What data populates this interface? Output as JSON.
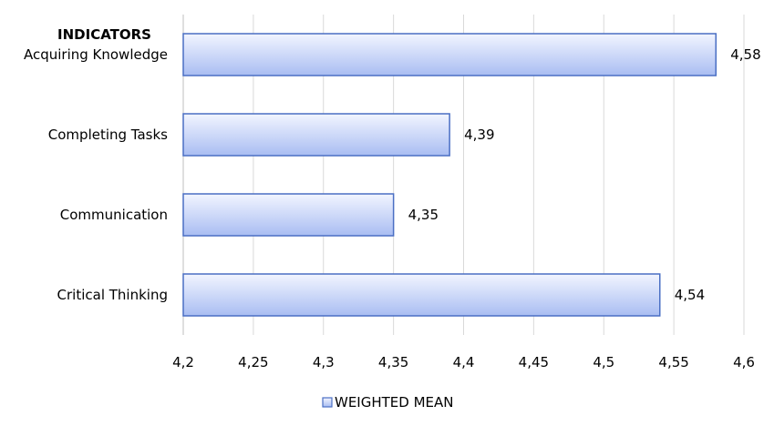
{
  "chart_data": {
    "type": "bar",
    "orientation": "horizontal",
    "category_header": "INDICATORS",
    "categories": [
      "Acquiring Knowledge",
      "Completing Tasks",
      "Communication",
      "Critical Thinking"
    ],
    "series": [
      {
        "name": "WEIGHTED MEAN",
        "values": [
          4.58,
          4.39,
          4.35,
          4.54
        ],
        "labels": [
          "4,58",
          "4,39",
          "4,35",
          "4,54"
        ]
      }
    ],
    "xlim": [
      4.2,
      4.6
    ],
    "xticks": [
      4.2,
      4.25,
      4.3,
      4.35,
      4.4,
      4.45,
      4.5,
      4.55,
      4.6
    ],
    "xtick_labels": [
      "4,2",
      "4,25",
      "4,3",
      "4,35",
      "4,4",
      "4,45",
      "4,5",
      "4,55",
      "4,6"
    ],
    "grid": "vertical",
    "legend": "bottom-center",
    "colors": {
      "bar_fill_light": "#f2f5ff",
      "bar_fill_dark": "#a9bdf2",
      "bar_stroke": "#4a6fc4",
      "grid": "#d9d9d9",
      "axis": "#bfbfbf"
    }
  }
}
